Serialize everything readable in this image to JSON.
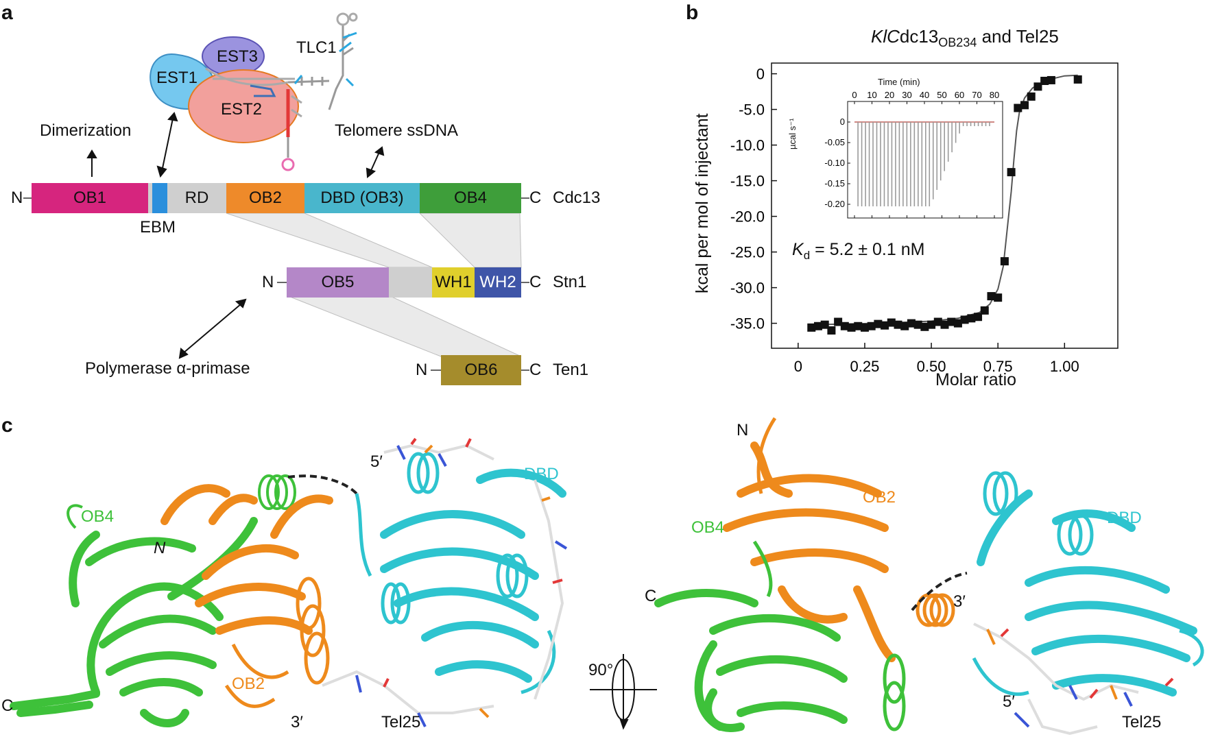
{
  "panels": {
    "a": "a",
    "b": "b",
    "c": "c"
  },
  "panel_a": {
    "telomerase": {
      "est1": "EST1",
      "est2": "EST2",
      "est3": "EST3",
      "tlc1": "TLC1"
    },
    "functions": {
      "dimerization": "Dimerization",
      "telomere_ssdna": "Telomere ssDNA",
      "pol_primase": "Polymerase α-primase"
    },
    "cdc13": {
      "name": "Cdc13",
      "n": "N",
      "c": "C",
      "domains": [
        {
          "label": "OB1",
          "color": "#d6257e"
        },
        {
          "label": "",
          "color": "#2b8fdc"
        },
        {
          "label": "RD",
          "color": "#cfcfcf"
        },
        {
          "label": "OB2",
          "color": "#ee8a2a"
        },
        {
          "label": "DBD (OB3)",
          "color": "#49b6cc"
        },
        {
          "label": "OB4",
          "color": "#3e9e3a"
        }
      ],
      "ebm": "EBM"
    },
    "stn1": {
      "name": "Stn1",
      "n": "N",
      "c": "C",
      "domains": [
        {
          "label": "OB5",
          "color": "#b487c8"
        },
        {
          "label": "",
          "color": "#cfcfcf"
        },
        {
          "label": "WH1",
          "color": "#e0cf2c"
        },
        {
          "label": "WH2",
          "color": "#3f55a8"
        }
      ]
    },
    "ten1": {
      "name": "Ten1",
      "n": "N",
      "c": "C",
      "domains": [
        {
          "label": "OB6",
          "color": "#a58c2c"
        }
      ]
    }
  },
  "panel_b": {
    "title_italic": "Kl",
    "title_prefix": "C",
    "title_main": "dc13",
    "title_sub": "OB234",
    "title_suffix": " and Tel25",
    "kd_symbol": "K",
    "kd_sub": "d",
    "kd_value": " = 5.2 ± 0.1 nM",
    "inset": {
      "xlabel": "Time (min)",
      "ylabel": "µcal s⁻¹",
      "xticks": [
        "0",
        "10",
        "20",
        "30",
        "40",
        "50",
        "60",
        "70",
        "80"
      ],
      "yticks": [
        "0",
        "-0.05",
        "-0.10",
        "-0.15",
        "-0.20"
      ]
    },
    "chart_data": {
      "type": "scatter",
      "xlabel": "Molar ratio",
      "ylabel": "kcal per mol of injectant",
      "xlim": [
        -0.1,
        1.2
      ],
      "ylim": [
        -38.5,
        1.5
      ],
      "xticks": [
        "0",
        "0.25",
        "0.50",
        "0.75",
        "1.00"
      ],
      "yticks": [
        "0",
        "-5.0",
        "-10.0",
        "-15.0",
        "-20.0",
        "-25.0",
        "-30.0",
        "-35.0"
      ],
      "points": [
        [
          0.05,
          -35.6
        ],
        [
          0.075,
          -35.4
        ],
        [
          0.1,
          -35.2
        ],
        [
          0.125,
          -36.0
        ],
        [
          0.15,
          -34.8
        ],
        [
          0.175,
          -35.4
        ],
        [
          0.2,
          -35.6
        ],
        [
          0.225,
          -35.4
        ],
        [
          0.25,
          -35.6
        ],
        [
          0.275,
          -35.4
        ],
        [
          0.3,
          -35.1
        ],
        [
          0.325,
          -35.3
        ],
        [
          0.35,
          -34.9
        ],
        [
          0.375,
          -35.2
        ],
        [
          0.4,
          -35.4
        ],
        [
          0.425,
          -35.0
        ],
        [
          0.45,
          -35.2
        ],
        [
          0.475,
          -35.5
        ],
        [
          0.5,
          -35.2
        ],
        [
          0.525,
          -34.8
        ],
        [
          0.55,
          -35.2
        ],
        [
          0.575,
          -34.8
        ],
        [
          0.6,
          -35.0
        ],
        [
          0.625,
          -34.5
        ],
        [
          0.65,
          -34.3
        ],
        [
          0.675,
          -34.1
        ],
        [
          0.7,
          -33.2
        ],
        [
          0.725,
          -31.2
        ],
        [
          0.75,
          -31.4
        ],
        [
          0.775,
          -26.3
        ],
        [
          0.8,
          -13.8
        ],
        [
          0.825,
          -4.8
        ],
        [
          0.85,
          -4.4
        ],
        [
          0.875,
          -3.2
        ],
        [
          0.9,
          -1.8
        ],
        [
          0.925,
          -1.0
        ],
        [
          0.95,
          -0.9
        ],
        [
          1.05,
          -0.8
        ]
      ],
      "fit": [
        [
          0.05,
          -35.2
        ],
        [
          0.3,
          -35.0
        ],
        [
          0.5,
          -34.7
        ],
        [
          0.6,
          -34.3
        ],
        [
          0.68,
          -33.5
        ],
        [
          0.72,
          -32.3
        ],
        [
          0.75,
          -30.2
        ],
        [
          0.77,
          -27.0
        ],
        [
          0.79,
          -20.0
        ],
        [
          0.8,
          -16.5
        ],
        [
          0.81,
          -12.0
        ],
        [
          0.82,
          -8.0
        ],
        [
          0.83,
          -5.5
        ],
        [
          0.85,
          -3.4
        ],
        [
          0.88,
          -2.0
        ],
        [
          0.93,
          -0.9
        ],
        [
          1.0,
          -0.3
        ],
        [
          1.05,
          -0.2
        ]
      ]
    }
  },
  "panel_c": {
    "left": {
      "ob4": "OB4",
      "ob2": "OB2",
      "dbd": "DBD",
      "n": "N",
      "c": "C",
      "five_prime": "5′",
      "three_prime": "3′",
      "tel25": "Tel25"
    },
    "rotation": "90°",
    "right": {
      "n": "N",
      "ob2": "OB2",
      "ob4": "OB4",
      "dbd": "DBD",
      "c": "C",
      "three_prime": "3′",
      "five_prime": "5′",
      "tel25": "Tel25"
    },
    "colors": {
      "green": "#3ec13a",
      "orange": "#ee8a1c",
      "cyan": "#2ec4cf"
    }
  }
}
